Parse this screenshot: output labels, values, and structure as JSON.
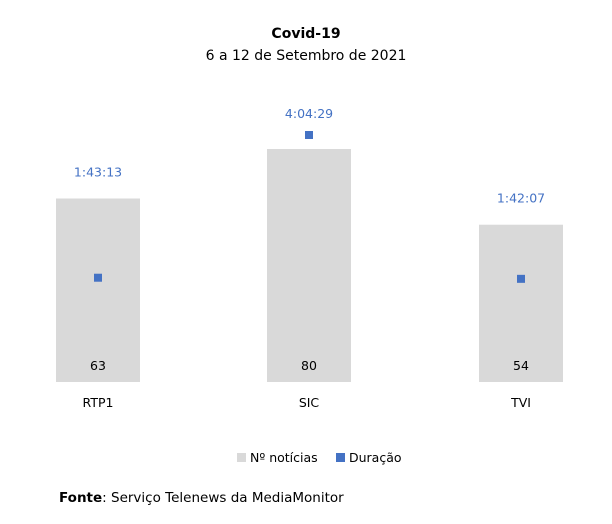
{
  "chart_data": {
    "type": "bar",
    "title": "Covid-19",
    "subtitle": "6 a 12 de Setembro de 2021",
    "categories": [
      "RTP1",
      "SIC",
      "TVI"
    ],
    "series": [
      {
        "name": "Nº notícias",
        "type": "bar",
        "axis": "primary",
        "values": [
          63,
          80,
          54
        ],
        "labels": [
          "63",
          "80",
          "54"
        ],
        "color": "#D9D9D9"
      },
      {
        "name": "Duração",
        "type": "scatter",
        "axis": "secondary",
        "values": [
          "1:43:13",
          "4:04:29",
          "1:42:07"
        ],
        "labels": [
          "1:43:13",
          "4:04:29",
          "1:42:07"
        ],
        "color": "#4472C4"
      }
    ],
    "legend": "bottom",
    "grid": false,
    "axes_visible": false
  },
  "footer": {
    "label": "Fonte",
    "text": ": Serviço Telenews da MediaMonitor"
  }
}
